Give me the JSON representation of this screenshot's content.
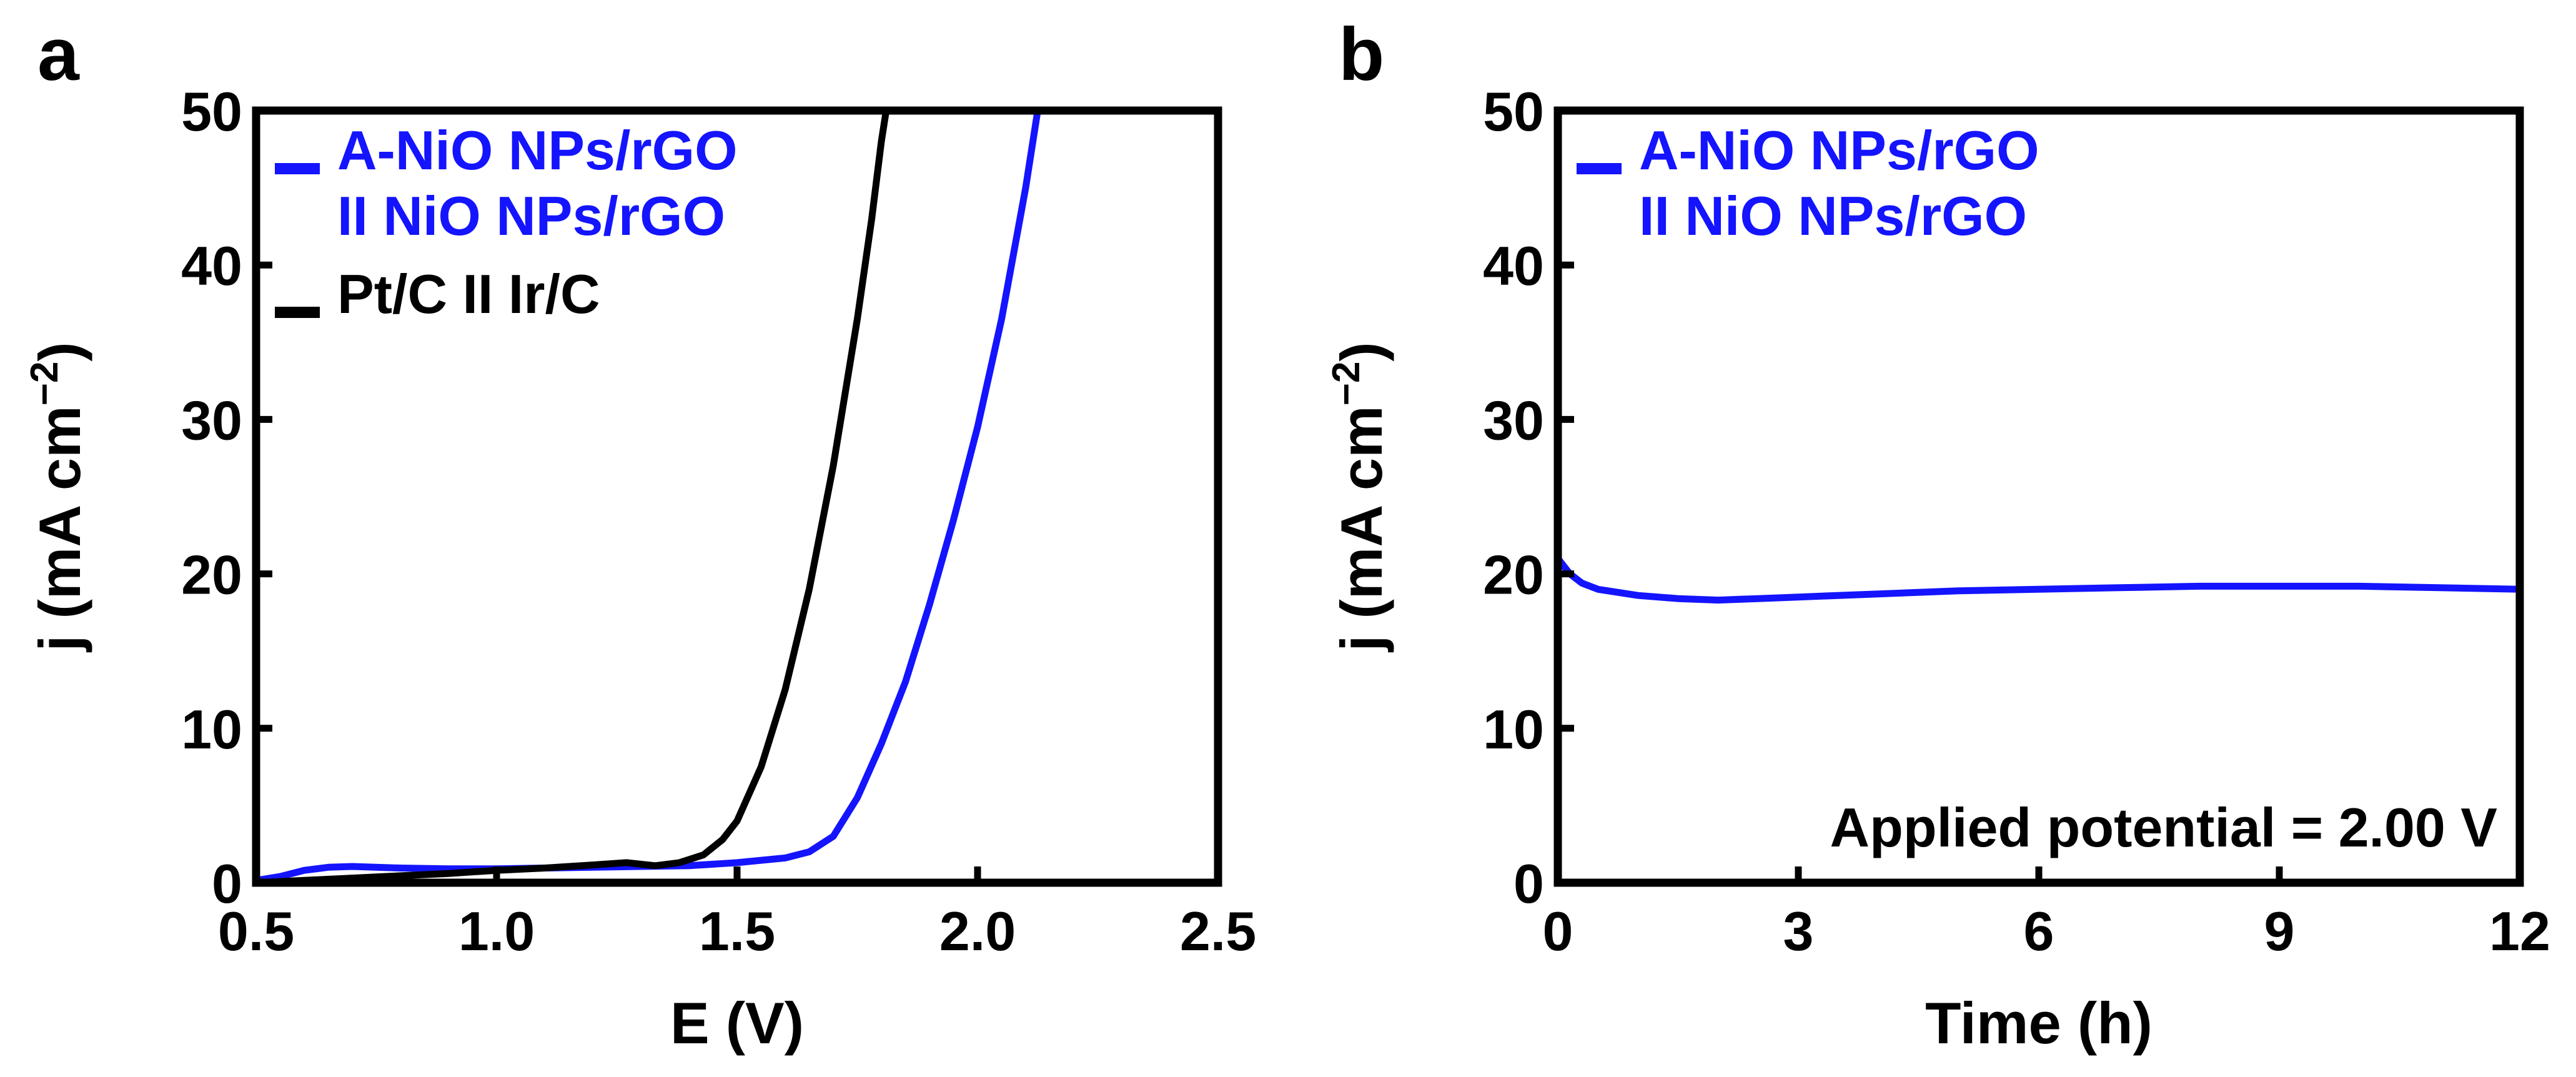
{
  "chart_data": [
    {
      "panel": "a",
      "type": "line",
      "xlabel": "E (V)",
      "ylabel": "j (mA cm",
      "ylabel_unit_sup": "−2",
      "ylabel_close": ")",
      "xlim": [
        0.5,
        2.5
      ],
      "ylim": [
        0,
        50
      ],
      "xticks": [
        0.5,
        1.0,
        1.5,
        2.0,
        2.5
      ],
      "xtick_labels": [
        "0.5",
        "1.0",
        "1.5",
        "2.0",
        "2.5"
      ],
      "yticks": [
        0,
        10,
        20,
        30,
        40,
        50
      ],
      "ytick_labels": [
        "0",
        "10",
        "20",
        "30",
        "40",
        "50"
      ],
      "grid": false,
      "legend_position": "top-left",
      "series": [
        {
          "name_line1": "A-NiO NPs/rGO",
          "name_line2": "II NiO NPs/rGO",
          "color": "#1414ff",
          "points": [
            [
              0.5,
              0.15
            ],
            [
              0.55,
              0.4
            ],
            [
              0.6,
              0.8
            ],
            [
              0.65,
              1.0
            ],
            [
              0.7,
              1.05
            ],
            [
              0.8,
              0.95
            ],
            [
              0.9,
              0.9
            ],
            [
              1.0,
              0.9
            ],
            [
              1.1,
              0.95
            ],
            [
              1.2,
              1.0
            ],
            [
              1.3,
              1.05
            ],
            [
              1.4,
              1.1
            ],
            [
              1.5,
              1.3
            ],
            [
              1.6,
              1.6
            ],
            [
              1.65,
              2.0
            ],
            [
              1.7,
              3.0
            ],
            [
              1.75,
              5.5
            ],
            [
              1.8,
              9.0
            ],
            [
              1.85,
              13.0
            ],
            [
              1.9,
              18.0
            ],
            [
              1.95,
              23.5
            ],
            [
              2.0,
              29.5
            ],
            [
              2.05,
              36.5
            ],
            [
              2.1,
              45.0
            ],
            [
              2.125,
              50.0
            ]
          ]
        },
        {
          "name_line1": "Pt/C II Ir/C",
          "color": "#000000",
          "points": [
            [
              0.5,
              0.0
            ],
            [
              0.6,
              0.15
            ],
            [
              0.7,
              0.3
            ],
            [
              0.8,
              0.45
            ],
            [
              0.9,
              0.6
            ],
            [
              1.0,
              0.8
            ],
            [
              1.1,
              0.95
            ],
            [
              1.2,
              1.15
            ],
            [
              1.27,
              1.3
            ],
            [
              1.33,
              1.1
            ],
            [
              1.38,
              1.3
            ],
            [
              1.43,
              1.8
            ],
            [
              1.47,
              2.8
            ],
            [
              1.5,
              4.0
            ],
            [
              1.55,
              7.5
            ],
            [
              1.6,
              12.5
            ],
            [
              1.65,
              19.0
            ],
            [
              1.7,
              27.0
            ],
            [
              1.75,
              36.5
            ],
            [
              1.78,
              43.0
            ],
            [
              1.8,
              48.0
            ],
            [
              1.81,
              50.0
            ]
          ]
        }
      ]
    },
    {
      "panel": "b",
      "type": "line",
      "xlabel": "Time (h)",
      "ylabel": "j (mA cm",
      "ylabel_unit_sup": "−2",
      "ylabel_close": ")",
      "xlim": [
        0,
        12
      ],
      "ylim": [
        0,
        50
      ],
      "xticks": [
        0,
        3,
        6,
        9,
        12
      ],
      "xtick_labels": [
        "0",
        "3",
        "6",
        "9",
        "12"
      ],
      "yticks": [
        0,
        10,
        20,
        30,
        40,
        50
      ],
      "ytick_labels": [
        "0",
        "10",
        "20",
        "30",
        "40",
        "50"
      ],
      "grid": false,
      "legend_position": "top-left",
      "annotation": "Applied potential = 2.00 V",
      "series": [
        {
          "name_line1": "A-NiO NPs/rGO",
          "name_line2": "II NiO NPs/rGO",
          "color": "#1414ff",
          "points": [
            [
              0,
              21.0
            ],
            [
              0.15,
              20.0
            ],
            [
              0.3,
              19.4
            ],
            [
              0.5,
              19.0
            ],
            [
              1.0,
              18.6
            ],
            [
              1.5,
              18.4
            ],
            [
              2.0,
              18.3
            ],
            [
              2.5,
              18.4
            ],
            [
              3.0,
              18.5
            ],
            [
              4.0,
              18.7
            ],
            [
              5.0,
              18.9
            ],
            [
              6.0,
              19.0
            ],
            [
              7.0,
              19.1
            ],
            [
              8.0,
              19.2
            ],
            [
              9.0,
              19.2
            ],
            [
              10.0,
              19.2
            ],
            [
              11.0,
              19.1
            ],
            [
              12.0,
              19.0
            ]
          ]
        }
      ]
    }
  ]
}
